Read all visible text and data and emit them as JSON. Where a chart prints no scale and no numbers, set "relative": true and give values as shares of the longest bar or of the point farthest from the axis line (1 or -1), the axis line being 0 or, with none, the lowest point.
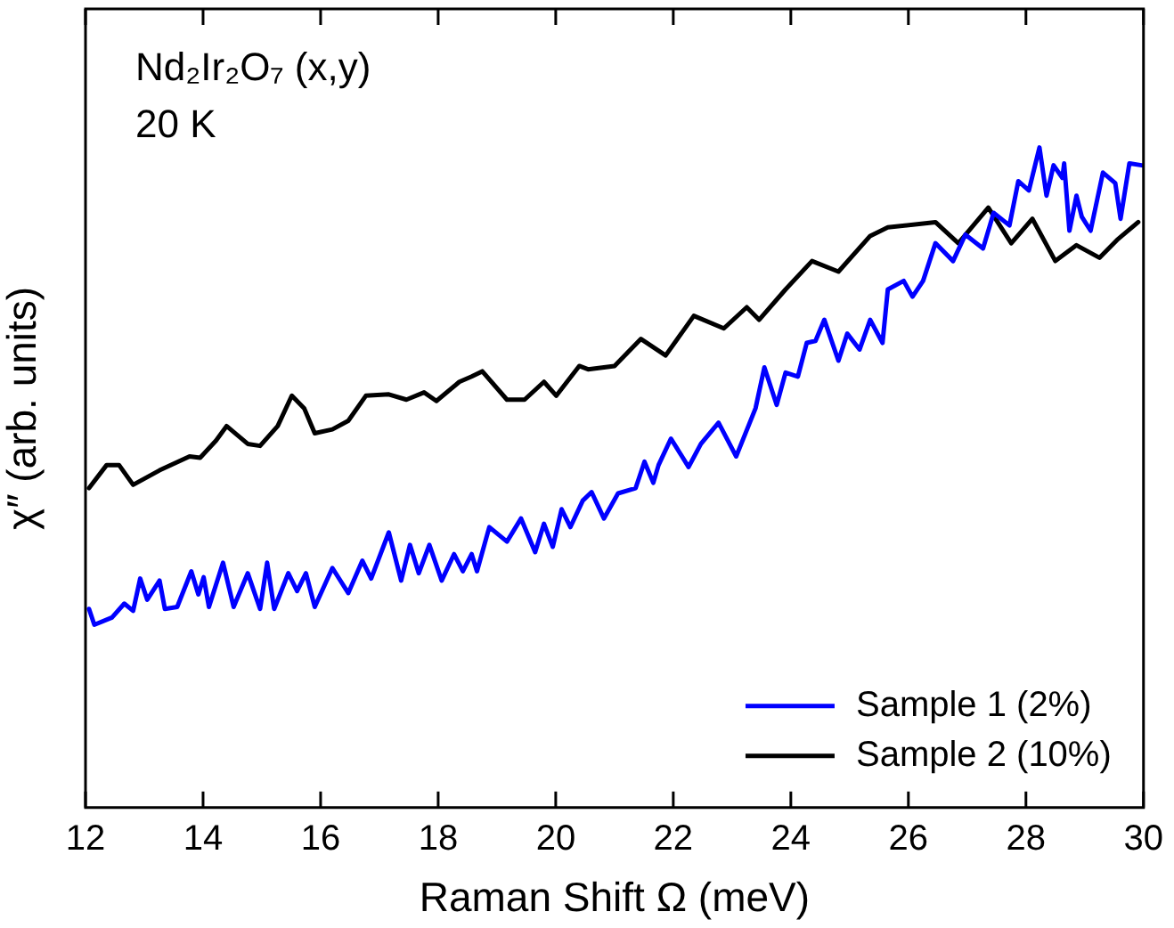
{
  "chart_data": {
    "type": "line",
    "xlabel": "Raman Shift Ω (meV)",
    "ylabel": "χ″ (arb. units)",
    "annotations": [
      "Nd₂Ir₂O₇ (x,y)",
      "20 K"
    ],
    "relative": true,
    "xlim": [
      12,
      30
    ],
    "xticks": [
      12,
      14,
      16,
      18,
      20,
      22,
      24,
      26,
      28,
      30
    ],
    "grid": false,
    "legend": "bottom right",
    "marker": "none",
    "line_style": "solid",
    "series": [
      {
        "name": "Sample 1 (2%)",
        "color": "#0000ff",
        "x": [
          12.06,
          12.15,
          12.45,
          12.66,
          12.81,
          12.93,
          13.05,
          13.26,
          13.35,
          13.56,
          13.8,
          13.92,
          14.01,
          14.1,
          14.34,
          14.52,
          14.76,
          14.97,
          15.09,
          15.21,
          15.45,
          15.6,
          15.75,
          15.9,
          16.2,
          16.47,
          16.71,
          16.86,
          17.16,
          17.37,
          17.52,
          17.67,
          17.85,
          18.06,
          18.27,
          18.42,
          18.57,
          18.66,
          18.87,
          19.17,
          19.41,
          19.65,
          19.8,
          19.95,
          20.1,
          20.25,
          20.46,
          20.61,
          20.82,
          21.06,
          21.36,
          21.51,
          21.66,
          21.75,
          21.96,
          22.26,
          22.47,
          22.77,
          23.07,
          23.4,
          23.55,
          23.76,
          23.91,
          24.12,
          24.27,
          24.42,
          24.57,
          24.81,
          24.96,
          25.17,
          25.35,
          25.56,
          25.65,
          25.92,
          26.07,
          26.25,
          26.46,
          26.76,
          26.97,
          27.27,
          27.45,
          27.72,
          27.87,
          28.05,
          28.23,
          28.35,
          28.47,
          28.62,
          28.65,
          28.74,
          28.86,
          28.95,
          29.1,
          29.31,
          29.52,
          29.61,
          29.76,
          29.97
        ],
        "values": [
          0.301,
          0.277,
          0.288,
          0.309,
          0.298,
          0.347,
          0.315,
          0.344,
          0.301,
          0.304,
          0.358,
          0.323,
          0.349,
          0.304,
          0.371,
          0.304,
          0.355,
          0.301,
          0.371,
          0.301,
          0.355,
          0.328,
          0.355,
          0.304,
          0.363,
          0.325,
          0.374,
          0.347,
          0.417,
          0.344,
          0.398,
          0.355,
          0.398,
          0.344,
          0.384,
          0.358,
          0.384,
          0.358,
          0.425,
          0.403,
          0.438,
          0.387,
          0.43,
          0.395,
          0.452,
          0.425,
          0.465,
          0.478,
          0.438,
          0.476,
          0.484,
          0.524,
          0.492,
          0.519,
          0.559,
          0.516,
          0.551,
          0.583,
          0.532,
          0.605,
          0.667,
          0.61,
          0.659,
          0.653,
          0.704,
          0.707,
          0.739,
          0.677,
          0.718,
          0.694,
          0.739,
          0.704,
          0.785,
          0.798,
          0.774,
          0.798,
          0.855,
          0.828,
          0.868,
          0.847,
          0.901,
          0.882,
          0.949,
          0.935,
          1,
          0.927,
          0.973,
          0.954,
          0.976,
          0.874,
          0.927,
          0.895,
          0.874,
          0.962,
          0.946,
          0.892,
          0.976,
          0.973
        ]
      },
      {
        "name": "Sample 2 (10%)",
        "color": "#000000",
        "x": [
          12.06,
          12.36,
          12.57,
          12.81,
          13.26,
          13.77,
          13.95,
          14.22,
          14.4,
          14.76,
          14.97,
          15.27,
          15.51,
          15.72,
          15.9,
          16.2,
          16.47,
          16.77,
          17.16,
          17.46,
          17.76,
          17.97,
          18.36,
          18.57,
          18.75,
          19.17,
          19.47,
          19.8,
          20.01,
          20.4,
          20.55,
          21.0,
          21.45,
          21.87,
          22.35,
          22.86,
          23.25,
          23.46,
          23.91,
          24.36,
          24.81,
          25.35,
          25.65,
          26.46,
          26.85,
          27.36,
          27.75,
          28.11,
          28.5,
          28.86,
          29.25,
          29.55,
          29.91
        ],
        "values": [
          0.484,
          0.519,
          0.519,
          0.489,
          0.511,
          0.532,
          0.53,
          0.556,
          0.578,
          0.551,
          0.548,
          0.578,
          0.624,
          0.605,
          0.567,
          0.573,
          0.586,
          0.624,
          0.626,
          0.618,
          0.629,
          0.616,
          0.645,
          0.653,
          0.661,
          0.618,
          0.618,
          0.645,
          0.624,
          0.669,
          0.664,
          0.669,
          0.71,
          0.685,
          0.745,
          0.726,
          0.758,
          0.739,
          0.785,
          0.828,
          0.812,
          0.866,
          0.879,
          0.887,
          0.855,
          0.909,
          0.855,
          0.892,
          0.828,
          0.852,
          0.833,
          0.86,
          0.887
        ]
      }
    ]
  }
}
